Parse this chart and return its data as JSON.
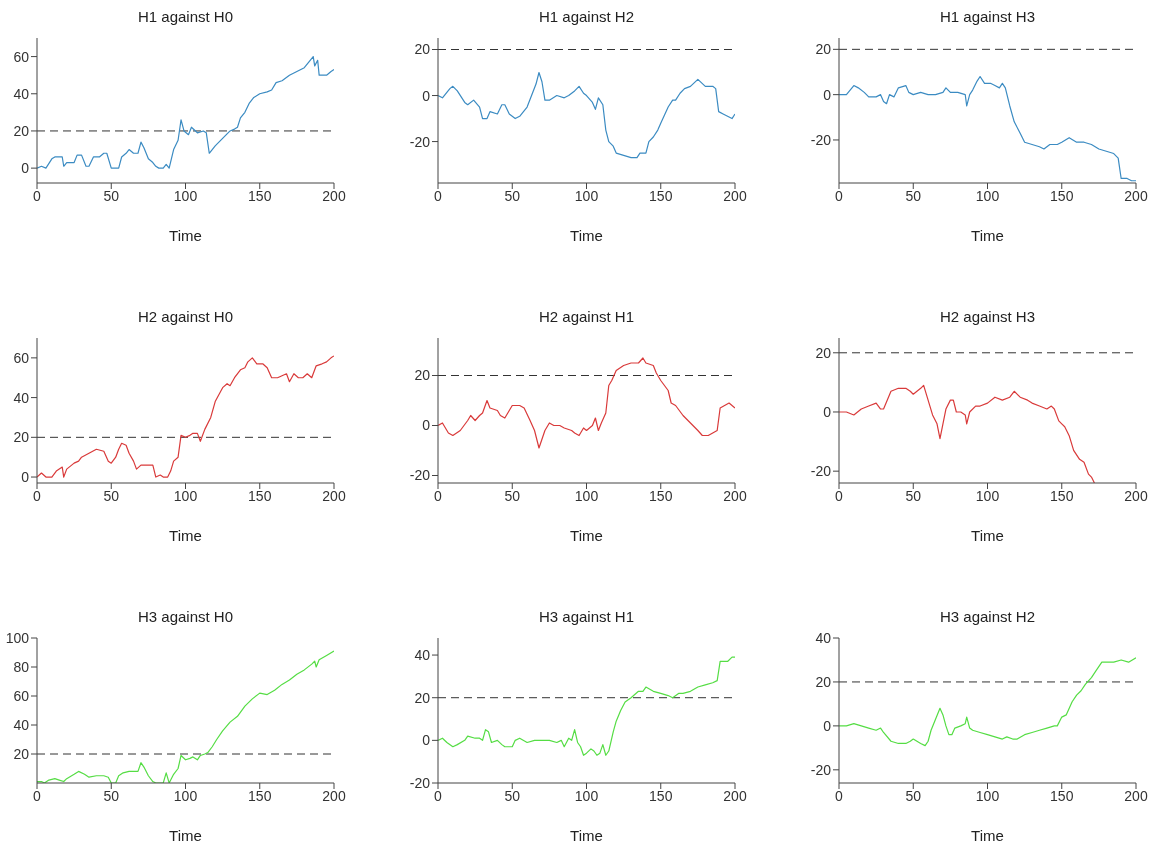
{
  "chart_data": [
    {
      "type": "line",
      "title": "H1 against H0",
      "xlabel": "Time",
      "color": "#3b8bc2",
      "xlim": [
        0,
        200
      ],
      "xticks": [
        0,
        50,
        100,
        150,
        200
      ],
      "ylim": [
        -8,
        70
      ],
      "yticks": [
        0,
        20,
        40,
        60
      ],
      "ref_lines": [
        {
          "axis": "y",
          "value": 20,
          "color": "#333333",
          "line_style": "dashed"
        }
      ],
      "x": [
        0,
        3,
        6,
        10,
        12,
        17,
        18,
        20,
        25,
        27,
        30,
        33,
        35,
        38,
        42,
        45,
        47,
        50,
        53,
        55,
        57,
        60,
        62,
        65,
        68,
        70,
        72,
        75,
        78,
        80,
        82,
        85,
        87,
        89,
        92,
        95,
        97,
        99,
        102,
        104,
        108,
        112,
        114,
        116,
        120,
        125,
        130,
        133,
        135,
        137,
        140,
        143,
        146,
        150,
        155,
        158,
        161,
        165,
        170,
        175,
        180,
        183,
        186,
        187,
        189,
        190,
        195,
        198,
        200
      ],
      "values": [
        0,
        1,
        0,
        5,
        6,
        6,
        1,
        3,
        3,
        7,
        7,
        1,
        1,
        6,
        6,
        8,
        8,
        0,
        0,
        0,
        6,
        8,
        10,
        8,
        8,
        14,
        11,
        5,
        3,
        1,
        0,
        0,
        2,
        0,
        10,
        15,
        26,
        20,
        18,
        22,
        19,
        20,
        19,
        8,
        12,
        16,
        20,
        21,
        22,
        27,
        30,
        35,
        38,
        40,
        41,
        42,
        46,
        47,
        50,
        52,
        54,
        57,
        60,
        55,
        58,
        50,
        50,
        52,
        53
      ]
    },
    {
      "type": "line",
      "title": "H1 against H2",
      "xlabel": "Time",
      "color": "#3b8bc2",
      "xlim": [
        0,
        200
      ],
      "xticks": [
        0,
        50,
        100,
        150,
        200
      ],
      "ylim": [
        -38,
        25
      ],
      "yticks": [
        -20,
        0,
        20
      ],
      "ref_lines": [
        {
          "axis": "y",
          "value": 20,
          "color": "#333333",
          "line_style": "dashed"
        }
      ],
      "x": [
        0,
        3,
        8,
        10,
        13,
        18,
        20,
        24,
        28,
        30,
        33,
        35,
        40,
        43,
        45,
        48,
        52,
        55,
        60,
        63,
        66,
        68,
        70,
        72,
        75,
        80,
        85,
        88,
        92,
        95,
        98,
        100,
        104,
        106,
        108,
        111,
        113,
        115,
        118,
        120,
        125,
        130,
        134,
        136,
        140,
        142,
        145,
        148,
        150,
        155,
        158,
        160,
        163,
        166,
        170,
        175,
        180,
        185,
        187,
        189,
        192,
        195,
        198,
        200
      ],
      "values": [
        0,
        -1,
        3,
        4,
        2,
        -3,
        -4,
        -2,
        -5,
        -10,
        -10,
        -7,
        -8,
        -4,
        -4,
        -8,
        -10,
        -9,
        -5,
        0,
        5,
        10,
        6,
        -2,
        -2,
        0,
        -1,
        0,
        2,
        4,
        1,
        0,
        -3,
        -6,
        -1,
        -4,
        -15,
        -20,
        -22,
        -25,
        -26,
        -27,
        -27,
        -25,
        -25,
        -20,
        -18,
        -15,
        -12,
        -5,
        -2,
        -2,
        1,
        3,
        4,
        7,
        4,
        4,
        3,
        -7,
        -8,
        -9,
        -10,
        -8
      ]
    },
    {
      "type": "line",
      "title": "H1 against H3",
      "xlabel": "Time",
      "color": "#3b8bc2",
      "xlim": [
        0,
        200
      ],
      "xticks": [
        0,
        50,
        100,
        150,
        200
      ],
      "ylim": [
        -39,
        25
      ],
      "yticks": [
        -20,
        0,
        20
      ],
      "ref_lines": [
        {
          "axis": "y",
          "value": 20,
          "color": "#333333",
          "line_style": "dashed"
        }
      ],
      "x": [
        0,
        5,
        10,
        13,
        17,
        20,
        25,
        28,
        30,
        32,
        34,
        37,
        40,
        45,
        47,
        50,
        55,
        60,
        65,
        70,
        72,
        75,
        80,
        85,
        86,
        88,
        90,
        93,
        95,
        98,
        102,
        105,
        108,
        110,
        112,
        115,
        118,
        122,
        125,
        130,
        135,
        138,
        142,
        147,
        150,
        155,
        160,
        165,
        170,
        175,
        180,
        185,
        188,
        190,
        194,
        197,
        200
      ],
      "values": [
        0,
        0,
        4,
        3,
        1,
        -1,
        -1,
        0,
        -3,
        -4,
        0,
        -1,
        3,
        4,
        1,
        0,
        1,
        0,
        0,
        1,
        3,
        1,
        1,
        0,
        -5,
        0,
        2,
        6,
        8,
        5,
        5,
        4,
        3,
        5,
        3,
        -5,
        -12,
        -17,
        -21,
        -22,
        -23,
        -24,
        -22,
        -22,
        -21,
        -19,
        -21,
        -21,
        -22,
        -24,
        -25,
        -26,
        -28,
        -37,
        -37,
        -38,
        -38
      ]
    },
    {
      "type": "line",
      "title": "H2 against H0",
      "xlabel": "Time",
      "color": "#d93a3a",
      "xlim": [
        0,
        200
      ],
      "xticks": [
        0,
        50,
        100,
        150,
        200
      ],
      "ylim": [
        -3,
        70
      ],
      "yticks": [
        0,
        20,
        40,
        60
      ],
      "ref_lines": [
        {
          "axis": "y",
          "value": 20,
          "color": "#333333",
          "line_style": "dashed"
        }
      ],
      "x": [
        0,
        3,
        6,
        10,
        13,
        17,
        18,
        20,
        25,
        28,
        30,
        35,
        40,
        45,
        48,
        50,
        53,
        55,
        57,
        60,
        62,
        65,
        67,
        70,
        75,
        78,
        80,
        83,
        85,
        88,
        90,
        92,
        95,
        97,
        100,
        103,
        105,
        108,
        110,
        113,
        117,
        120,
        125,
        128,
        130,
        133,
        137,
        140,
        142,
        145,
        148,
        152,
        155,
        158,
        162,
        165,
        168,
        170,
        173,
        176,
        179,
        182,
        185,
        188,
        192,
        195,
        198,
        200
      ],
      "values": [
        0,
        2,
        0,
        0,
        3,
        5,
        0,
        4,
        7,
        8,
        10,
        12,
        14,
        13,
        8,
        7,
        10,
        14,
        17,
        16,
        12,
        8,
        4,
        6,
        6,
        6,
        0,
        1,
        0,
        0,
        3,
        8,
        10,
        21,
        20,
        21,
        22,
        22,
        18,
        24,
        30,
        38,
        45,
        47,
        46,
        50,
        54,
        55,
        58,
        60,
        57,
        57,
        55,
        50,
        50,
        51,
        52,
        48,
        52,
        50,
        50,
        52,
        50,
        56,
        57,
        58,
        60,
        61
      ]
    },
    {
      "type": "line",
      "title": "H2 against H1",
      "xlabel": "Time",
      "color": "#d93a3a",
      "xlim": [
        0,
        200
      ],
      "xticks": [
        0,
        50,
        100,
        150,
        200
      ],
      "ylim": [
        -23,
        35
      ],
      "yticks": [
        -20,
        0,
        20
      ],
      "ref_lines": [
        {
          "axis": "y",
          "value": 20,
          "color": "#333333",
          "line_style": "dashed"
        }
      ],
      "x": [
        0,
        3,
        7,
        10,
        15,
        20,
        22,
        25,
        28,
        30,
        33,
        35,
        40,
        42,
        45,
        48,
        50,
        55,
        58,
        62,
        65,
        68,
        72,
        75,
        78,
        82,
        85,
        90,
        92,
        95,
        98,
        100,
        104,
        106,
        108,
        110,
        113,
        115,
        117,
        120,
        125,
        130,
        135,
        138,
        140,
        145,
        147,
        150,
        155,
        157,
        160,
        165,
        170,
        175,
        178,
        182,
        185,
        188,
        190,
        193,
        196,
        200
      ],
      "values": [
        0,
        1,
        -3,
        -4,
        -2,
        2,
        4,
        2,
        4,
        5,
        10,
        7,
        6,
        4,
        3,
        6,
        8,
        8,
        7,
        2,
        -2,
        -9,
        -2,
        1,
        0,
        0,
        -1,
        -2,
        -3,
        -4,
        -1,
        -2,
        0,
        3,
        -2,
        1,
        5,
        16,
        18,
        22,
        24,
        25,
        25,
        27,
        25,
        24,
        21,
        18,
        14,
        9,
        8,
        4,
        1,
        -2,
        -4,
        -4,
        -3,
        -2,
        7,
        8,
        9,
        7
      ]
    },
    {
      "type": "line",
      "title": "H2 against H3",
      "xlabel": "Time",
      "color": "#d93a3a",
      "xlim": [
        0,
        200
      ],
      "xticks": [
        0,
        50,
        100,
        150,
        200
      ],
      "ylim": [
        -24,
        25
      ],
      "yticks": [
        -20,
        0,
        20
      ],
      "ref_lines": [
        {
          "axis": "y",
          "value": 20,
          "color": "#333333",
          "line_style": "dashed"
        }
      ],
      "x": [
        0,
        5,
        10,
        15,
        20,
        25,
        28,
        30,
        35,
        40,
        45,
        48,
        50,
        55,
        57,
        60,
        63,
        66,
        68,
        70,
        72,
        75,
        77,
        79,
        82,
        85,
        86,
        88,
        92,
        95,
        100,
        105,
        110,
        115,
        118,
        122,
        127,
        130,
        135,
        140,
        143,
        145,
        148,
        150,
        152,
        155,
        158,
        162,
        165,
        168,
        170,
        172
      ],
      "values": [
        0,
        0,
        -1,
        1,
        2,
        3,
        1,
        1,
        7,
        8,
        8,
        7,
        6,
        8,
        9,
        4,
        -1,
        -4,
        -9,
        -4,
        1,
        4,
        4,
        0,
        0,
        -1,
        -4,
        0,
        2,
        2,
        3,
        5,
        4,
        5,
        7,
        5,
        4,
        3,
        2,
        1,
        2,
        1,
        -3,
        -4,
        -5,
        -8,
        -13,
        -16,
        -17,
        -21,
        -22,
        -24
      ]
    },
    {
      "type": "line",
      "title": "H3 against H0",
      "xlabel": "Time",
      "color": "#55dd44",
      "xlim": [
        0,
        200
      ],
      "xticks": [
        0,
        50,
        100,
        150,
        200
      ],
      "ylim": [
        0,
        100
      ],
      "yticks": [
        20,
        40,
        60,
        80,
        100
      ],
      "ref_lines": [
        {
          "axis": "y",
          "value": 20,
          "color": "#333333",
          "line_style": "dashed"
        }
      ],
      "x": [
        0,
        3,
        5,
        8,
        12,
        15,
        18,
        20,
        25,
        28,
        32,
        35,
        40,
        45,
        48,
        50,
        53,
        55,
        58,
        62,
        65,
        68,
        70,
        72,
        75,
        78,
        80,
        85,
        87,
        89,
        92,
        95,
        97,
        100,
        103,
        105,
        108,
        110,
        113,
        115,
        118,
        121,
        125,
        130,
        135,
        140,
        145,
        150,
        155,
        160,
        165,
        170,
        175,
        180,
        185,
        187,
        188,
        190,
        195,
        200
      ],
      "values": [
        1,
        1,
        0,
        2,
        3,
        2,
        1,
        3,
        6,
        8,
        6,
        4,
        5,
        5,
        4,
        0,
        0,
        5,
        7,
        8,
        8,
        8,
        14,
        11,
        5,
        1,
        0,
        0,
        7,
        0,
        6,
        10,
        19,
        16,
        17,
        18,
        16,
        19,
        20,
        21,
        25,
        30,
        36,
        42,
        46,
        53,
        58,
        62,
        61,
        64,
        68,
        71,
        75,
        78,
        82,
        84,
        80,
        85,
        88,
        91
      ]
    },
    {
      "type": "line",
      "title": "H3 against H1",
      "xlabel": "Time",
      "color": "#55dd44",
      "xlim": [
        0,
        200
      ],
      "xticks": [
        0,
        50,
        100,
        150,
        200
      ],
      "ylim": [
        -20,
        48
      ],
      "yticks": [
        -20,
        0,
        20,
        40
      ],
      "ref_lines": [
        {
          "axis": "y",
          "value": 20,
          "color": "#333333",
          "line_style": "dashed"
        }
      ],
      "x": [
        0,
        3,
        6,
        10,
        13,
        18,
        20,
        25,
        28,
        30,
        32,
        34,
        36,
        40,
        43,
        45,
        50,
        52,
        55,
        60,
        65,
        70,
        75,
        80,
        83,
        85,
        88,
        90,
        92,
        94,
        96,
        98,
        100,
        103,
        105,
        107,
        109,
        111,
        113,
        115,
        118,
        120,
        123,
        126,
        130,
        135,
        138,
        140,
        145,
        150,
        155,
        158,
        162,
        165,
        170,
        175,
        180,
        185,
        188,
        190,
        195,
        198,
        200
      ],
      "values": [
        0,
        1,
        -1,
        -3,
        -2,
        0,
        2,
        1,
        1,
        0,
        5,
        4,
        -1,
        0,
        -2,
        -3,
        -3,
        0,
        1,
        -1,
        0,
        0,
        0,
        -1,
        0,
        -3,
        1,
        0,
        5,
        -1,
        -3,
        -7,
        -6,
        -4,
        -5,
        -7,
        -6,
        -2,
        -7,
        -5,
        4,
        9,
        14,
        18,
        20,
        23,
        23,
        25,
        23,
        22,
        21,
        20,
        22,
        22,
        23,
        25,
        26,
        27,
        28,
        37,
        37,
        39,
        39
      ]
    },
    {
      "type": "line",
      "title": "H3 against H2",
      "xlabel": "Time",
      "color": "#55dd44",
      "xlim": [
        0,
        200
      ],
      "xticks": [
        0,
        50,
        100,
        150,
        200
      ],
      "ylim": [
        -26,
        40
      ],
      "yticks": [
        -20,
        0,
        20,
        40
      ],
      "ref_lines": [
        {
          "axis": "y",
          "value": 20,
          "color": "#333333",
          "line_style": "dashed"
        }
      ],
      "x": [
        0,
        5,
        10,
        15,
        20,
        25,
        28,
        30,
        35,
        40,
        45,
        48,
        50,
        55,
        58,
        60,
        62,
        65,
        68,
        70,
        72,
        74,
        76,
        78,
        82,
        85,
        86,
        88,
        90,
        95,
        100,
        105,
        110,
        113,
        117,
        120,
        125,
        130,
        135,
        140,
        145,
        147,
        150,
        153,
        157,
        160,
        163,
        166,
        170,
        173,
        177,
        180,
        185,
        190,
        195,
        200
      ],
      "values": [
        0,
        0,
        1,
        0,
        -1,
        -2,
        -1,
        -3,
        -7,
        -8,
        -8,
        -7,
        -6,
        -8,
        -9,
        -7,
        -2,
        3,
        8,
        5,
        0,
        -4,
        -4,
        -1,
        0,
        1,
        4,
        -1,
        -2,
        -3,
        -4,
        -5,
        -6,
        -5,
        -6,
        -6,
        -4,
        -3,
        -2,
        -1,
        0,
        0,
        4,
        5,
        11,
        14,
        16,
        19,
        22,
        25,
        29,
        29,
        29,
        30,
        29,
        31
      ]
    }
  ]
}
